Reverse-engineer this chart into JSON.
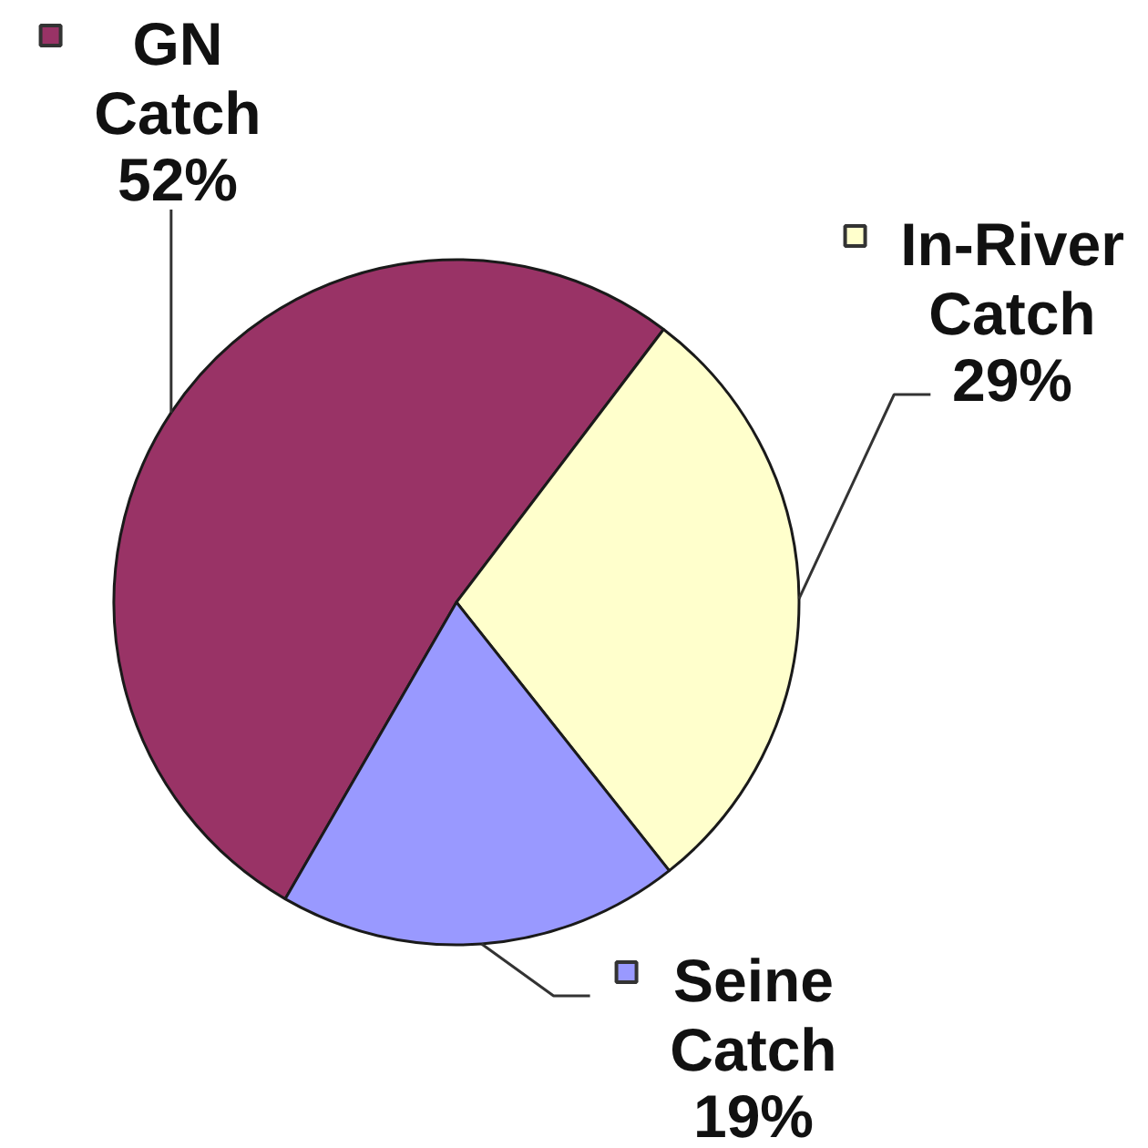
{
  "chart_data": {
    "type": "pie",
    "categories": [
      "GN Catch",
      "In-River Catch",
      "Seine Catch"
    ],
    "values": [
      52,
      29,
      19
    ],
    "colors": [
      "#993366",
      "#ffffcc",
      "#9999ff"
    ],
    "value_labels": [
      "52%",
      "29%",
      "19%"
    ],
    "legend": true
  }
}
